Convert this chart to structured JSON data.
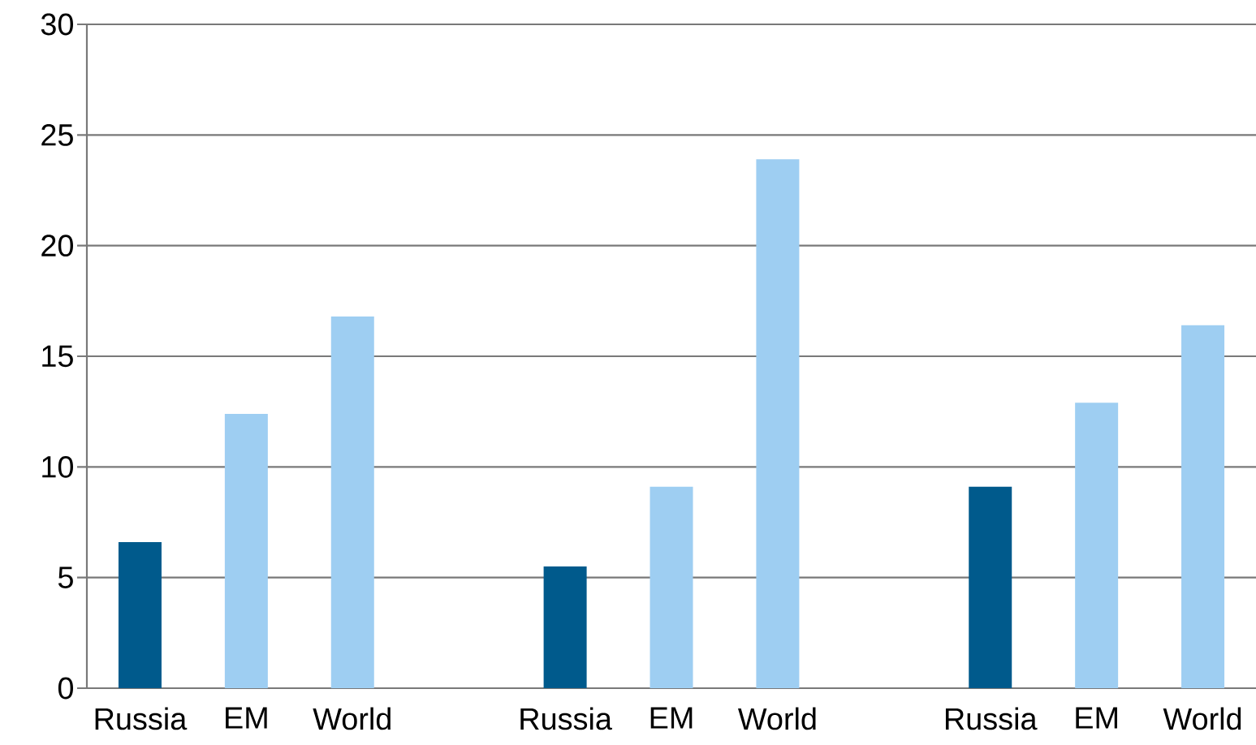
{
  "chart_data": {
    "type": "bar",
    "categories": [
      "Russia",
      "EM",
      "World",
      null,
      "Russia",
      "EM",
      "World",
      null,
      "Russia",
      "EM",
      "World"
    ],
    "values": [
      6.6,
      12.4,
      16.8,
      null,
      5.5,
      9.1,
      23.9,
      null,
      9.1,
      12.9,
      16.4
    ],
    "colors": [
      "#005a8c",
      "#9ecef2",
      "#9ecef2",
      null,
      "#005a8c",
      "#9ecef2",
      "#9ecef2",
      null,
      "#005a8c",
      "#9ecef2",
      "#9ecef2"
    ],
    "ylim": [
      0,
      30
    ],
    "yticks": [
      0,
      5,
      10,
      15,
      20,
      25,
      30
    ],
    "grid": "y"
  }
}
